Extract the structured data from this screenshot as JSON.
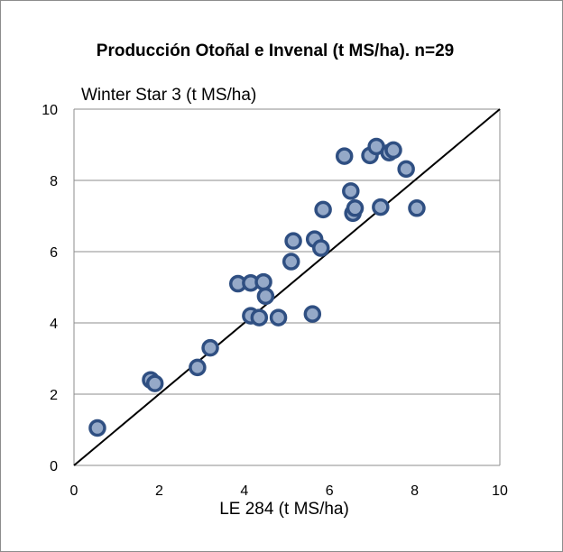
{
  "chart_data": {
    "type": "scatter",
    "title": "Producción Otoñal e Invenal (t MS/ha). n=29",
    "xlabel": "LE 284 (t MS/ha)",
    "ylabel": "Winter Star 3 (t MS/ha)",
    "xlim": [
      0,
      10
    ],
    "ylim": [
      0,
      10
    ],
    "xticks": [
      0,
      2,
      4,
      6,
      8,
      10
    ],
    "yticks": [
      0,
      2,
      4,
      6,
      8,
      10
    ],
    "grid": "horizontal",
    "legend": "none",
    "reference_line": {
      "from": [
        0,
        0
      ],
      "to": [
        10,
        10
      ],
      "color": "#000000"
    },
    "marker_fill": "#95a9c8",
    "marker_stroke": "#2f4f82",
    "series": [
      {
        "points": [
          [
            0.55,
            1.05
          ],
          [
            1.8,
            2.4
          ],
          [
            1.9,
            2.3
          ],
          [
            2.9,
            2.75
          ],
          [
            3.2,
            3.3
          ],
          [
            3.85,
            5.1
          ],
          [
            4.15,
            5.12
          ],
          [
            4.15,
            4.2
          ],
          [
            4.35,
            4.15
          ],
          [
            4.45,
            5.15
          ],
          [
            4.5,
            4.75
          ],
          [
            4.8,
            4.15
          ],
          [
            5.1,
            5.72
          ],
          [
            5.15,
            6.3
          ],
          [
            5.6,
            4.25
          ],
          [
            5.65,
            6.35
          ],
          [
            5.8,
            6.1
          ],
          [
            5.85,
            7.18
          ],
          [
            6.35,
            8.68
          ],
          [
            6.5,
            7.7
          ],
          [
            6.55,
            7.08
          ],
          [
            6.6,
            7.22
          ],
          [
            6.95,
            8.7
          ],
          [
            7.1,
            8.95
          ],
          [
            7.2,
            7.25
          ],
          [
            7.4,
            8.78
          ],
          [
            7.5,
            8.85
          ],
          [
            7.8,
            8.32
          ],
          [
            8.05,
            7.22
          ]
        ]
      }
    ]
  }
}
